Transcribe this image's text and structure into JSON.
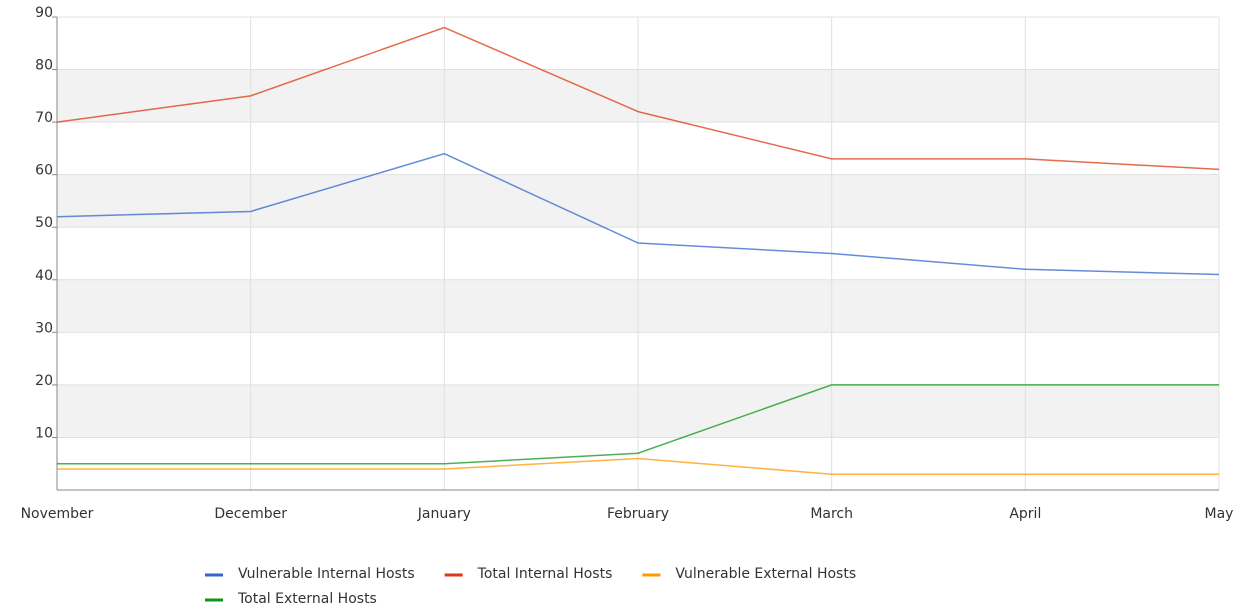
{
  "chart_data": {
    "type": "line",
    "categories": [
      "November",
      "December",
      "January",
      "February",
      "March",
      "April",
      "May"
    ],
    "series": [
      {
        "name": "Vulnerable Internal Hosts",
        "color": "#3366cc",
        "values": [
          52,
          53,
          64,
          47,
          45,
          42,
          41
        ]
      },
      {
        "name": "Total Internal Hosts",
        "color": "#dc3912",
        "values": [
          70,
          75,
          88,
          72,
          63,
          63,
          61
        ]
      },
      {
        "name": "Vulnerable External Hosts",
        "color": "#ff9900",
        "values": [
          4,
          4,
          4,
          6,
          3,
          3,
          3
        ]
      },
      {
        "name": "Total External Hosts",
        "color": "#109618",
        "values": [
          5,
          5,
          5,
          7,
          20,
          20,
          20
        ]
      }
    ],
    "ylim": [
      0,
      90
    ],
    "yticks": [
      10,
      20,
      30,
      40,
      50,
      60,
      70,
      80,
      90
    ],
    "grid": true,
    "legend": "bottom"
  }
}
